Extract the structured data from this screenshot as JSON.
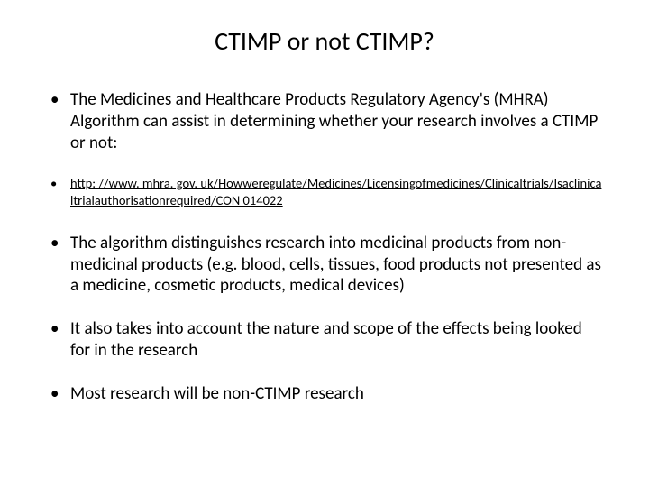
{
  "title": "CTIMP or not CTIMP?",
  "bullets": {
    "b1": "The Medicines and Healthcare Products Regulatory Agency's (MHRA) Algorithm can assist in determining whether your research involves a CTIMP or not:",
    "b2_link": "http: //www. mhra. gov. uk/Howweregulate/Medicines/Licensingofmedicines/Clinicaltrials/Isaclinicaltrialauthorisationrequired/CON 014022",
    "b3": "The algorithm distinguishes research into medicinal products from non-medicinal products (e.g. blood, cells, tissues, food products not presented as a medicine, cosmetic products, medical devices)",
    "b4": "It also takes into account the nature and scope of the effects being looked for in the research",
    "b5": "Most research will be non-CTIMP research"
  },
  "style": {
    "background_color": "#ffffff",
    "text_color": "#000000",
    "title_fontsize": 28,
    "body_fontsize": 19,
    "small_fontsize": 14.5,
    "font_family": "Calibri",
    "link_underline": true
  }
}
